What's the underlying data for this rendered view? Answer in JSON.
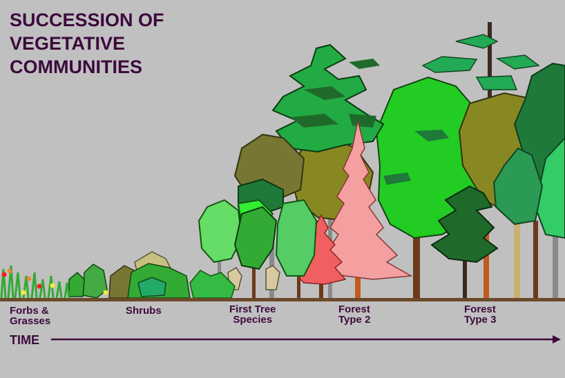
{
  "title_lines": [
    "SUCCESSION OF",
    "VEGETATIVE",
    "COMMUNITIES"
  ],
  "stages": [
    {
      "lines": [
        "Forbs &",
        "Grasses"
      ]
    },
    {
      "lines": [
        "Shrubs"
      ]
    },
    {
      "lines": [
        "First Tree",
        "Species"
      ]
    },
    {
      "lines": [
        "Forest",
        "Type 2"
      ]
    },
    {
      "lines": [
        "Forest",
        "Type 3"
      ]
    }
  ],
  "axis_label": "TIME",
  "colors": {
    "background": "#c0c0c0",
    "text": "#3c0a3c",
    "ground": "#6b4a2a",
    "bright_green": "#22cc22",
    "mid_green": "#33aa33",
    "dark_green": "#1f7a3a",
    "olive": "#888822",
    "light_green": "#66dd66",
    "pink": "#f4a0a0",
    "salmon": "#f06060",
    "tan": "#d8c8a0"
  }
}
